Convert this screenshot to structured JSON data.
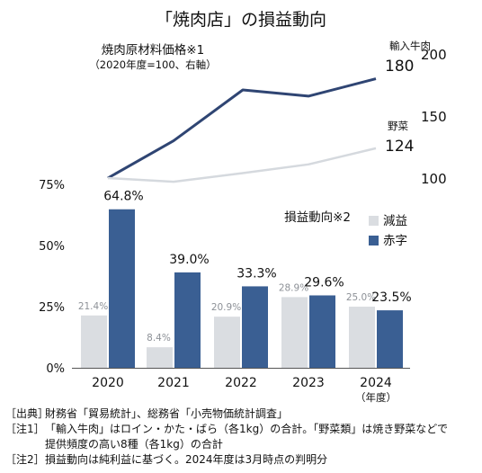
{
  "title": "「焼肉店」の損益動向",
  "chart_data": [
    {
      "type": "line",
      "title": "焼肉原材料価格※1",
      "subtitle": "（2020年度=100、右軸）",
      "x": [
        "2020",
        "2021",
        "2022",
        "2023",
        "2024"
      ],
      "series": [
        {
          "name": "輸入牛肉",
          "values": [
            100,
            130,
            171,
            166,
            180
          ],
          "end_label": "180",
          "color": "#2f4573"
        },
        {
          "name": "野菜",
          "values": [
            100,
            97,
            104,
            111,
            124
          ],
          "end_label": "124",
          "color": "#d5d9de"
        }
      ],
      "y_axis_side": "right",
      "ylim": [
        100,
        200
      ],
      "yticks": [
        "100",
        "150",
        "200"
      ],
      "grid": false
    },
    {
      "type": "bar",
      "title": "損益動向※2",
      "categories": [
        "2020",
        "2021",
        "2022",
        "2023",
        "2024"
      ],
      "category_suffix": [
        "",
        "",
        "",
        "",
        "（年度）"
      ],
      "series": [
        {
          "name": "減益",
          "values": [
            21.4,
            8.4,
            20.9,
            28.9,
            25.0
          ],
          "labels": [
            "21.4%",
            "8.4%",
            "20.9%",
            "28.9%",
            "25.0%"
          ],
          "color": "#dadde1"
        },
        {
          "name": "赤字",
          "values": [
            64.8,
            39.0,
            33.3,
            29.6,
            23.5
          ],
          "labels": [
            "64.8%",
            "39.0%",
            "33.3%",
            "29.6%",
            "23.5%"
          ],
          "color": "#3a5f93"
        }
      ],
      "ylim": [
        0,
        75
      ],
      "yticks": [
        "0%",
        "25%",
        "50%",
        "75%"
      ],
      "legend": "top-right",
      "grid": false
    }
  ],
  "notes": [
    {
      "tag": "［出典］",
      "text": "財務省「貿易統計」、総務省「小売物価統計調査」"
    },
    {
      "tag": "［注1］",
      "text": "「輸入牛肉」はロイン・かた・ばら（各1kg）の合計。「野菜類」は焼き野菜などで"
    },
    {
      "tag": "",
      "text": "提供頻度の高い8種（各1kg）の合計"
    },
    {
      "tag": "［注2］",
      "text": "損益動向は純利益に基づく。2024年度は3月時点の判明分"
    }
  ]
}
